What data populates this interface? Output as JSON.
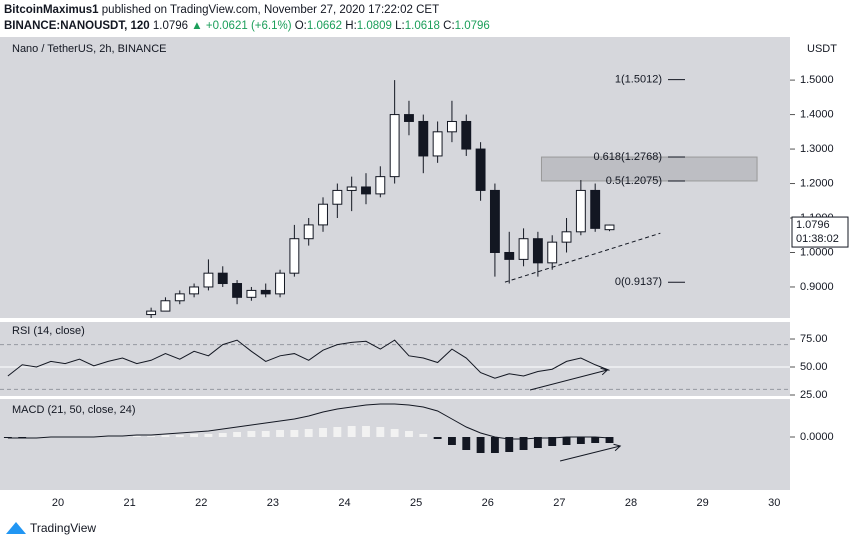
{
  "header": {
    "author": "BitcoinMaximus1",
    "published": "published on TradingView.com, November 27, 2020 17:22:02 CET",
    "symbol": "BINANCE:NANOUSDT, 120",
    "last": "1.0796",
    "change": "▲ +0.0621 (+6.1%)",
    "ohlc": [
      {
        "label": "O:",
        "value": "1.0662"
      },
      {
        "label": "H:",
        "value": "1.0809"
      },
      {
        "label": "L:",
        "value": "1.0618"
      },
      {
        "label": "C:",
        "value": "1.0796"
      }
    ]
  },
  "chart_data": [
    {
      "type": "candlestick",
      "title": "Nano / TetherUS, 2h, BINANCE",
      "currency": "USDT",
      "x": [
        21.3,
        21.5,
        21.7,
        21.9,
        22.1,
        22.3,
        22.5,
        22.7,
        22.9,
        23.1,
        23.3,
        23.5,
        23.7,
        23.9,
        24.1,
        24.3,
        24.5,
        24.7,
        24.9,
        25.1,
        25.3,
        25.5,
        25.7,
        25.9,
        26.1,
        26.3,
        26.5,
        26.7,
        26.9,
        27.1,
        27.3,
        27.5,
        27.7
      ],
      "open": [
        0.82,
        0.83,
        0.86,
        0.88,
        0.9,
        0.94,
        0.91,
        0.87,
        0.89,
        0.88,
        0.94,
        1.04,
        1.08,
        1.14,
        1.18,
        1.19,
        1.17,
        1.22,
        1.4,
        1.38,
        1.28,
        1.35,
        1.38,
        1.3,
        1.18,
        1.0,
        0.98,
        1.04,
        0.97,
        1.03,
        1.06,
        1.18,
        1.0662
      ],
      "high": [
        0.84,
        0.87,
        0.89,
        0.91,
        0.98,
        0.96,
        0.92,
        0.9,
        0.91,
        0.95,
        1.08,
        1.1,
        1.16,
        1.2,
        1.22,
        1.23,
        1.25,
        1.5,
        1.44,
        1.4,
        1.38,
        1.44,
        1.4,
        1.32,
        1.2,
        1.06,
        1.07,
        1.06,
        1.05,
        1.1,
        1.21,
        1.2,
        1.0809
      ],
      "low": [
        0.81,
        0.83,
        0.85,
        0.87,
        0.89,
        0.9,
        0.85,
        0.86,
        0.87,
        0.87,
        0.93,
        1.02,
        1.06,
        1.1,
        1.12,
        1.14,
        1.16,
        1.2,
        1.34,
        1.23,
        1.26,
        1.32,
        1.28,
        1.15,
        0.93,
        0.91,
        0.96,
        0.93,
        0.95,
        1.0,
        1.05,
        1.06,
        1.0618
      ],
      "close": [
        0.83,
        0.86,
        0.88,
        0.9,
        0.94,
        0.91,
        0.87,
        0.89,
        0.88,
        0.94,
        1.04,
        1.08,
        1.14,
        1.18,
        1.19,
        1.17,
        1.22,
        1.4,
        1.38,
        1.28,
        1.35,
        1.38,
        1.3,
        1.18,
        1.0,
        0.98,
        1.04,
        0.97,
        1.03,
        1.06,
        1.18,
        1.07,
        1.0796
      ],
      "up_color": "#ffffff",
      "down_color": "#131722",
      "xlim": [
        19.19,
        30.22
      ],
      "xticks": [
        20,
        21,
        22,
        23,
        24,
        25,
        26,
        27,
        28,
        29,
        30
      ],
      "ylim": [
        0.81,
        1.625
      ],
      "yticks": [
        {
          "value": 0.9,
          "label": "0.9000"
        },
        {
          "value": 1.0,
          "label": "1.0000"
        },
        {
          "value": 1.1,
          "label": "1.1000"
        },
        {
          "value": 1.2,
          "label": "1.2000"
        },
        {
          "value": 1.3,
          "label": "1.3000"
        },
        {
          "value": 1.4,
          "label": "1.4000"
        },
        {
          "value": 1.5,
          "label": "1.5000"
        }
      ],
      "price_label": {
        "value": 1.0796,
        "label": "1.0796"
      },
      "countdown": "01:38:02",
      "fib_levels": [
        {
          "label": "1(1.5012)",
          "value": 1.5012
        },
        {
          "label": "0.618(1.2768)",
          "value": 1.2768
        },
        {
          "label": "0.5(1.2075)",
          "value": 1.2075
        },
        {
          "label": "0(0.9137)",
          "value": 0.9137
        }
      ],
      "zone": {
        "x": [
          26.75,
          29.76
        ],
        "y": [
          1.2075,
          1.2768
        ]
      },
      "trendline": {
        "x": [
          26.24,
          28.41
        ],
        "y": [
          0.914,
          1.056
        ]
      }
    },
    {
      "type": "line",
      "title": "RSI (14, close)",
      "x": [
        19.3,
        19.5,
        19.7,
        19.9,
        20.1,
        20.3,
        20.5,
        20.7,
        20.9,
        21.1,
        21.3,
        21.5,
        21.7,
        21.9,
        22.1,
        22.3,
        22.5,
        22.7,
        22.9,
        23.1,
        23.3,
        23.5,
        23.7,
        23.9,
        24.1,
        24.3,
        24.5,
        24.7,
        24.9,
        25.1,
        25.3,
        25.5,
        25.7,
        25.9,
        26.1,
        26.3,
        26.5,
        26.7,
        26.9,
        27.1,
        27.3,
        27.5,
        27.7
      ],
      "values": [
        42,
        52,
        50,
        55,
        53,
        57,
        51,
        55,
        58,
        53,
        56,
        62,
        57,
        64,
        60,
        70,
        74,
        64,
        55,
        60,
        62,
        56,
        65,
        70,
        72,
        73,
        66,
        74,
        60,
        58,
        54,
        66,
        58,
        45,
        40,
        44,
        42,
        46,
        48,
        55,
        58,
        52,
        47
      ],
      "color": "#131722",
      "ylim": [
        24.1,
        90.2
      ],
      "yticks": [
        {
          "value": 75,
          "label": "75.00"
        },
        {
          "value": 50,
          "label": "50.00"
        },
        {
          "value": 25,
          "label": "25.00"
        }
      ],
      "bands": [
        70,
        30
      ],
      "midline": 50,
      "arrow": {
        "x": [
          26.59,
          27.67
        ],
        "y": [
          29.5,
          47.3
        ]
      }
    },
    {
      "type": "macd",
      "title": "MACD (21, 50, close, 24)",
      "x": [
        19.3,
        19.5,
        19.7,
        19.9,
        20.1,
        20.3,
        20.5,
        20.7,
        20.9,
        21.1,
        21.3,
        21.5,
        21.7,
        21.9,
        22.1,
        22.3,
        22.5,
        22.7,
        22.9,
        23.1,
        23.3,
        23.5,
        23.7,
        23.9,
        24.1,
        24.3,
        24.5,
        24.7,
        24.9,
        25.1,
        25.3,
        25.5,
        25.7,
        25.9,
        26.1,
        26.3,
        26.5,
        26.7,
        26.9,
        27.1,
        27.3,
        27.5,
        27.7
      ],
      "line_values": [
        -0.001,
        -0.001,
        -0.001,
        0,
        0,
        0,
        0,
        0.001,
        0.001,
        0.002,
        0.002,
        0.003,
        0.004,
        0.005,
        0.006,
        0.008,
        0.01,
        0.012,
        0.014,
        0.016,
        0.018,
        0.021,
        0.025,
        0.028,
        0.03,
        0.032,
        0.033,
        0.033,
        0.032,
        0.03,
        0.026,
        0.018,
        0.01,
        0.004,
        0,
        -0.002,
        -0.002,
        -0.001,
        -0.001,
        0,
        0,
        0,
        -0.001
      ],
      "histogram_values": [
        -0.001,
        -0.001,
        0,
        0,
        0,
        0,
        0,
        0,
        0,
        0.001,
        0.001,
        0.002,
        0.002,
        0.003,
        0.003,
        0.004,
        0.005,
        0.006,
        0.006,
        0.007,
        0.007,
        0.008,
        0.009,
        0.01,
        0.011,
        0.011,
        0.01,
        0.008,
        0.006,
        0.003,
        -0.002,
        -0.008,
        -0.013,
        -0.016,
        -0.016,
        -0.015,
        -0.013,
        -0.011,
        -0.009,
        -0.008,
        -0.007,
        -0.006,
        -0.006
      ],
      "positive_color": "#f2f2f2",
      "negative_color": "#131722",
      "line_color": "#131722",
      "ylim": [
        -0.053,
        0.038
      ],
      "yticks": [
        {
          "value": 0,
          "label": "0.0000"
        }
      ],
      "arrow": {
        "x": [
          27.01,
          27.85
        ],
        "y": [
          -0.024,
          -0.009
        ]
      }
    }
  ],
  "footer": {
    "brand": "TradingView"
  }
}
